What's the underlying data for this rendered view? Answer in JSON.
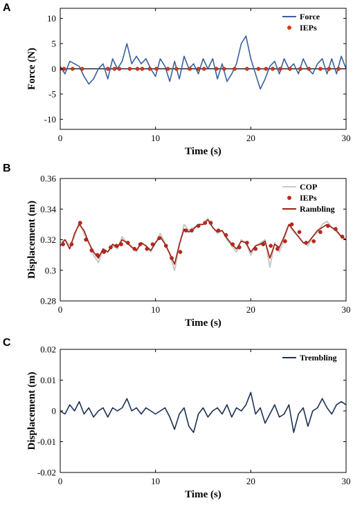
{
  "chart_data": [
    {
      "panel": "A",
      "type": "line",
      "xlabel": "Time (s)",
      "ylabel": "Force (N)",
      "xlim": [
        0,
        30
      ],
      "ylim": [
        -12,
        12
      ],
      "xticks": [
        0,
        10,
        20,
        30
      ],
      "yticks": [
        10,
        5,
        0,
        -5,
        -10
      ],
      "legend": {
        "position": "top-right"
      },
      "series": [
        {
          "name": "Force",
          "kind": "line",
          "color": "#3a5f9e",
          "x": [
            0,
            0.5,
            1,
            1.5,
            2,
            2.5,
            3,
            3.5,
            4,
            4.5,
            5,
            5.5,
            6,
            6.5,
            7,
            7.5,
            8,
            8.5,
            9,
            9.5,
            10,
            10.5,
            11,
            11.5,
            12,
            12.5,
            13,
            13.5,
            14,
            14.5,
            15,
            15.5,
            16,
            16.5,
            17,
            17.5,
            18,
            18.5,
            19,
            19.5,
            20,
            20.5,
            21,
            21.5,
            22,
            22.5,
            23,
            23.5,
            24,
            24.5,
            25,
            25.5,
            26,
            26.5,
            27,
            27.5,
            28,
            28.5,
            29,
            29.5,
            30
          ],
          "y": [
            0.5,
            -1,
            1.5,
            1,
            0.5,
            -1.5,
            -3,
            -2,
            0,
            1,
            -2,
            2,
            0,
            1.5,
            5,
            1,
            2.5,
            1,
            2,
            0,
            -1.5,
            2,
            0.5,
            -2.5,
            1.5,
            -2,
            2.5,
            0,
            1,
            -1,
            2,
            0,
            2,
            -2,
            1,
            -2.5,
            -1,
            1,
            5,
            6.5,
            2,
            -1,
            -4,
            -2,
            0.5,
            1.5,
            -1,
            2,
            0,
            1,
            -1,
            2,
            0,
            -1,
            1,
            2,
            -1,
            2,
            -1,
            2.5,
            0
          ]
        },
        {
          "name": "IEPs",
          "kind": "markers",
          "color": "#d23b1e",
          "x": [
            0,
            0.4,
            1.3,
            2.3,
            5,
            5.7,
            6.2,
            7.3,
            8.1,
            8.6,
            9.4,
            10.1,
            11.3,
            12.2,
            13.6,
            14.5,
            15.1,
            16.4,
            17.2,
            18.3,
            19.6,
            20.8,
            21.6,
            22.3,
            23.1,
            24.1,
            25.2,
            26.1,
            27.3,
            28.2,
            29.2
          ],
          "y": [
            0,
            0,
            0,
            0,
            0,
            0,
            0,
            0,
            0,
            0,
            0,
            0,
            0,
            0,
            0,
            0,
            0,
            0,
            0,
            0,
            0,
            0,
            0,
            0,
            0,
            0,
            0,
            0,
            0,
            0,
            0
          ]
        }
      ],
      "reference_line": {
        "y": 0,
        "color": "#000000"
      }
    },
    {
      "panel": "B",
      "type": "line",
      "xlabel": "Time (s)",
      "ylabel": "Displacement (m)",
      "xlim": [
        0,
        30
      ],
      "ylim": [
        0.28,
        0.36
      ],
      "xticks": [
        0,
        10,
        20,
        30
      ],
      "yticks": [
        0.36,
        0.34,
        0.32,
        0.3,
        0.28
      ],
      "legend": {
        "position": "top-right"
      },
      "series": [
        {
          "name": "COP",
          "kind": "line",
          "color": "#c8c8c8",
          "x": [
            0,
            0.5,
            1,
            1.5,
            2,
            2.5,
            3,
            3.5,
            4,
            4.5,
            5,
            5.5,
            6,
            6.5,
            7,
            7.5,
            8,
            8.5,
            9,
            9.5,
            10,
            10.5,
            11,
            11.5,
            12,
            12.5,
            13,
            13.5,
            14,
            14.5,
            15,
            15.5,
            16,
            16.5,
            17,
            17.5,
            18,
            18.5,
            19,
            19.5,
            20,
            20.5,
            21,
            21.5,
            22,
            22.5,
            23,
            23.5,
            24,
            24.5,
            25,
            25.5,
            26,
            26.5,
            27,
            27.5,
            28,
            28.5,
            29,
            29.5,
            30
          ],
          "y": [
            0.318,
            0.32,
            0.316,
            0.322,
            0.332,
            0.324,
            0.318,
            0.31,
            0.305,
            0.314,
            0.312,
            0.316,
            0.314,
            0.322,
            0.318,
            0.316,
            0.312,
            0.318,
            0.316,
            0.312,
            0.318,
            0.324,
            0.318,
            0.31,
            0.3,
            0.316,
            0.33,
            0.326,
            0.328,
            0.33,
            0.33,
            0.334,
            0.328,
            0.324,
            0.326,
            0.32,
            0.316,
            0.312,
            0.32,
            0.318,
            0.31,
            0.316,
            0.318,
            0.32,
            0.302,
            0.318,
            0.312,
            0.32,
            0.33,
            0.325,
            0.322,
            0.318,
            0.316,
            0.322,
            0.325,
            0.33,
            0.332,
            0.328,
            0.325,
            0.322,
            0.32
          ]
        },
        {
          "name": "Rambling",
          "kind": "line",
          "color": "#9e1c0c",
          "x": [
            0,
            0.5,
            1,
            1.5,
            2,
            2.5,
            3,
            3.5,
            4,
            4.5,
            5,
            5.5,
            6,
            6.5,
            7,
            7.5,
            8,
            8.5,
            9,
            9.5,
            10,
            10.5,
            11,
            11.5,
            12,
            12.5,
            13,
            13.5,
            14,
            14.5,
            15,
            15.5,
            16,
            16.5,
            17,
            17.5,
            18,
            18.5,
            19,
            19.5,
            20,
            20.5,
            21,
            21.5,
            22,
            22.5,
            23,
            23.5,
            24,
            24.5,
            25,
            25.5,
            26,
            26.5,
            27,
            27.5,
            28,
            28.5,
            29,
            29.5,
            30
          ],
          "y": [
            0.316,
            0.32,
            0.314,
            0.324,
            0.33,
            0.326,
            0.318,
            0.312,
            0.308,
            0.314,
            0.312,
            0.317,
            0.315,
            0.32,
            0.318,
            0.315,
            0.313,
            0.318,
            0.316,
            0.313,
            0.318,
            0.322,
            0.317,
            0.311,
            0.304,
            0.317,
            0.327,
            0.325,
            0.327,
            0.33,
            0.33,
            0.333,
            0.328,
            0.325,
            0.326,
            0.321,
            0.317,
            0.314,
            0.319,
            0.318,
            0.312,
            0.316,
            0.317,
            0.319,
            0.308,
            0.317,
            0.315,
            0.322,
            0.33,
            0.326,
            0.322,
            0.318,
            0.318,
            0.322,
            0.326,
            0.328,
            0.33,
            0.328,
            0.326,
            0.322,
            0.32
          ]
        },
        {
          "name": "IEPs",
          "kind": "markers",
          "color": "#c0271a",
          "x": [
            0.3,
            1.2,
            2.1,
            2.7,
            3.3,
            3.9,
            4.6,
            5.3,
            5.9,
            6.4,
            7.1,
            7.8,
            8.4,
            9.1,
            9.7,
            10.4,
            11.1,
            11.7,
            12.6,
            13.2,
            13.8,
            14.5,
            15.2,
            15.8,
            16.6,
            17.4,
            18.1,
            18.8,
            19.6,
            20.5,
            21.3,
            22.1,
            22.8,
            23.6,
            24.3,
            25.1,
            25.8,
            26.6,
            27.3,
            28.1,
            28.9,
            29.6
          ],
          "y": [
            0.317,
            0.317,
            0.331,
            0.32,
            0.313,
            0.31,
            0.312,
            0.315,
            0.316,
            0.317,
            0.318,
            0.314,
            0.317,
            0.314,
            0.317,
            0.321,
            0.316,
            0.308,
            0.312,
            0.326,
            0.326,
            0.329,
            0.331,
            0.331,
            0.326,
            0.323,
            0.317,
            0.315,
            0.318,
            0.314,
            0.317,
            0.316,
            0.314,
            0.319,
            0.33,
            0.325,
            0.318,
            0.319,
            0.325,
            0.329,
            0.327,
            0.322
          ]
        }
      ]
    },
    {
      "panel": "C",
      "type": "line",
      "xlabel": "Time (s)",
      "ylabel": "Displacement (m)",
      "xlim": [
        0,
        30
      ],
      "ylim": [
        -0.02,
        0.02
      ],
      "xticks": [
        0,
        10,
        20,
        30
      ],
      "yticks": [
        0.02,
        0.01,
        0,
        -0.01,
        -0.02
      ],
      "legend": {
        "position": "top-right"
      },
      "series": [
        {
          "name": "Trembling",
          "kind": "line",
          "color": "#1c2e52",
          "x": [
            0,
            0.5,
            1,
            1.5,
            2,
            2.5,
            3,
            3.5,
            4,
            4.5,
            5,
            5.5,
            6,
            6.5,
            7,
            7.5,
            8,
            8.5,
            9,
            9.5,
            10,
            10.5,
            11,
            11.5,
            12,
            12.5,
            13,
            13.5,
            14,
            14.5,
            15,
            15.5,
            16,
            16.5,
            17,
            17.5,
            18,
            18.5,
            19,
            19.5,
            20,
            20.5,
            21,
            21.5,
            22,
            22.5,
            23,
            23.5,
            24,
            24.5,
            25,
            25.5,
            26,
            26.5,
            27,
            27.5,
            28,
            28.5,
            29,
            29.5,
            30
          ],
          "y": [
            0,
            -0.001,
            0.002,
            0,
            0.003,
            -0.001,
            0.001,
            -0.002,
            0,
            0.001,
            -0.002,
            0.001,
            0,
            0.001,
            0.004,
            0,
            0.001,
            -0.001,
            0.001,
            0,
            -0.001,
            0,
            0.001,
            -0.002,
            -0.006,
            -0.001,
            0.001,
            -0.005,
            -0.007,
            -0.001,
            0.001,
            -0.002,
            0,
            0.001,
            -0.001,
            0.002,
            -0.002,
            0.001,
            0,
            0.002,
            0.006,
            -0.001,
            0.001,
            -0.004,
            -0.001,
            0.002,
            -0.002,
            -0.001,
            0.002,
            -0.007,
            -0.001,
            0.001,
            -0.005,
            0,
            0.001,
            0.004,
            0.001,
            -0.001,
            0.002,
            0.003,
            0.002
          ]
        }
      ]
    }
  ]
}
